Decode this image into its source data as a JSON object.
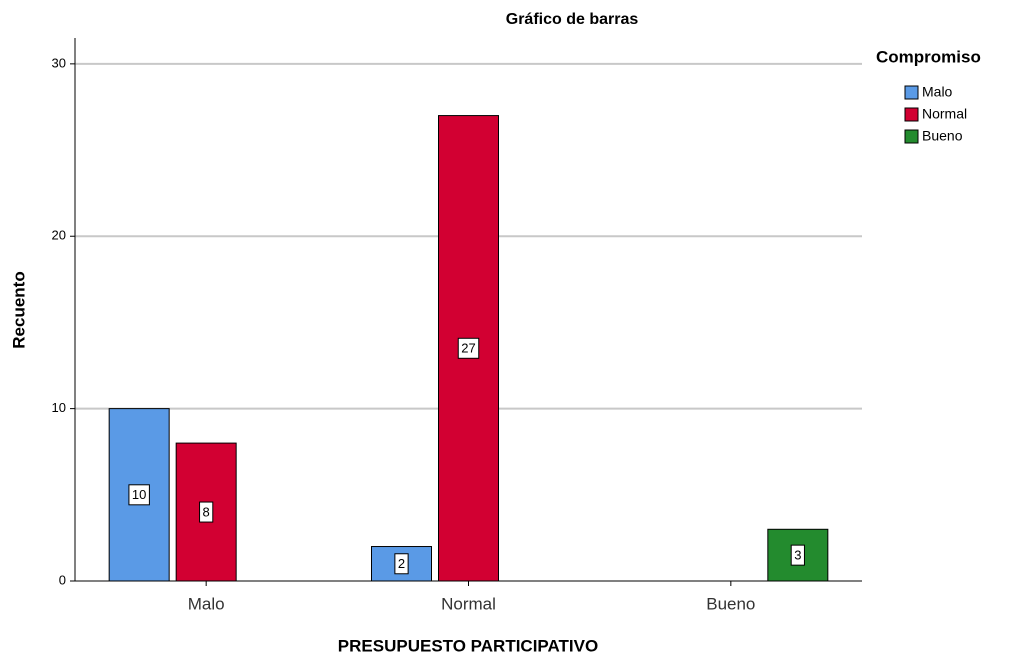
{
  "chart_data": {
    "type": "bar",
    "title": "Gráfico de barras",
    "x_label": "PRESUPUESTO PARTICIPATIVO",
    "y_label": "Recuento",
    "legend_title": "Compromiso",
    "legend": "right",
    "categories": [
      "Malo",
      "Normal",
      "Bueno"
    ],
    "series": [
      {
        "name": "Malo",
        "color": "#5a9ae6",
        "values": [
          10,
          2,
          null
        ]
      },
      {
        "name": "Normal",
        "color": "#d20032",
        "values": [
          8,
          27,
          null
        ]
      },
      {
        "name": "Bueno",
        "color": "#238b2e",
        "values": [
          null,
          null,
          3
        ]
      }
    ],
    "ylim": [
      0,
      31.5
    ],
    "yticks": [
      0,
      10,
      20,
      30
    ],
    "grid": true
  }
}
